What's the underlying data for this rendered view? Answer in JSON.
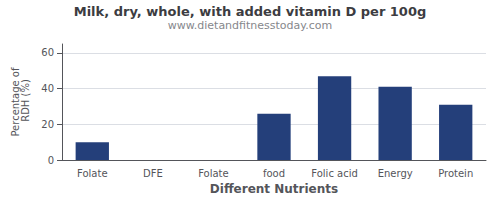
{
  "chart_data": {
    "type": "bar",
    "title": "Milk, dry, whole, with added vitamin D per 100g",
    "subtitle": "www.dietandfitnesstoday.com",
    "xlabel": "Different Nutrients",
    "ylabel": "Percentage of\n RDH (%)",
    "categories": [
      "Folate",
      "DFE",
      "Folate",
      "food",
      "Folic acid",
      "Energy",
      "Protein"
    ],
    "values": [
      10,
      0,
      0,
      26,
      47,
      41,
      31
    ],
    "color": "#243f7a",
    "ylim": [
      0,
      65
    ],
    "yticks": [
      0,
      20,
      40,
      60
    ],
    "grid": true
  }
}
